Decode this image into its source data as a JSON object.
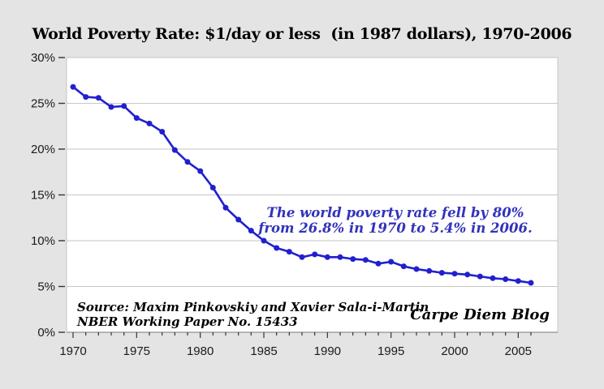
{
  "title": "World Poverty Rate: $1/day or less  (in 1987 dollars), 1970-2006",
  "annotation": {
    "line1": "The world poverty rate fell by 80%",
    "line2": "from 26.8% in 1970 to 5.4% in 2006.",
    "color": "#3232bb"
  },
  "source": {
    "line1": "Source: Maxim Pinkovskiy and Xavier Sala-i-Martin",
    "line2": "NBER Working Paper No. 15433"
  },
  "watermark": "Carpe Diem Blog",
  "colors": {
    "page_background": "#e4e4e4",
    "plot_background": "#ffffff",
    "gridline": "#c6c6c6",
    "line": "#2120cf",
    "axis": "#777777",
    "tick": "#333333",
    "label_text": "#1a1a1a"
  },
  "chart_data": {
    "type": "line",
    "title": "World Poverty Rate: $1/day or less (in 1987 dollars), 1970-2006",
    "xlabel": "",
    "ylabel": "",
    "x": [
      1970,
      1971,
      1972,
      1973,
      1974,
      1975,
      1976,
      1977,
      1978,
      1979,
      1980,
      1981,
      1982,
      1983,
      1984,
      1985,
      1986,
      1987,
      1988,
      1989,
      1990,
      1991,
      1992,
      1993,
      1994,
      1995,
      1996,
      1997,
      1998,
      1999,
      2000,
      2001,
      2002,
      2003,
      2004,
      2005,
      2006
    ],
    "series": [
      {
        "name": "World poverty rate ($1/day or less, 1987 dollars)",
        "values": [
          26.8,
          25.7,
          25.6,
          24.6,
          24.7,
          23.4,
          22.8,
          21.9,
          19.9,
          18.6,
          17.6,
          15.8,
          13.6,
          12.3,
          11.1,
          10.0,
          9.2,
          8.8,
          8.2,
          8.5,
          8.2,
          8.2,
          8.0,
          7.9,
          7.5,
          7.7,
          7.2,
          6.9,
          6.7,
          6.5,
          6.4,
          6.3,
          6.1,
          5.9,
          5.8,
          5.6,
          5.4
        ]
      }
    ],
    "ylim": [
      0,
      30
    ],
    "y_ticks": [
      0,
      5,
      10,
      15,
      20,
      25,
      30
    ],
    "y_tick_labels": [
      "0%",
      "5%",
      "10%",
      "15%",
      "20%",
      "25%",
      "30%"
    ],
    "x_labeled_ticks": [
      1970,
      1975,
      1980,
      1985,
      1990,
      1995,
      2000,
      2005
    ],
    "x_tick_labels": [
      "1970",
      "1975",
      "1980",
      "1985",
      "1990",
      "1995",
      "2000",
      "2005"
    ],
    "grid": true,
    "legend": false,
    "marker": "circle"
  }
}
